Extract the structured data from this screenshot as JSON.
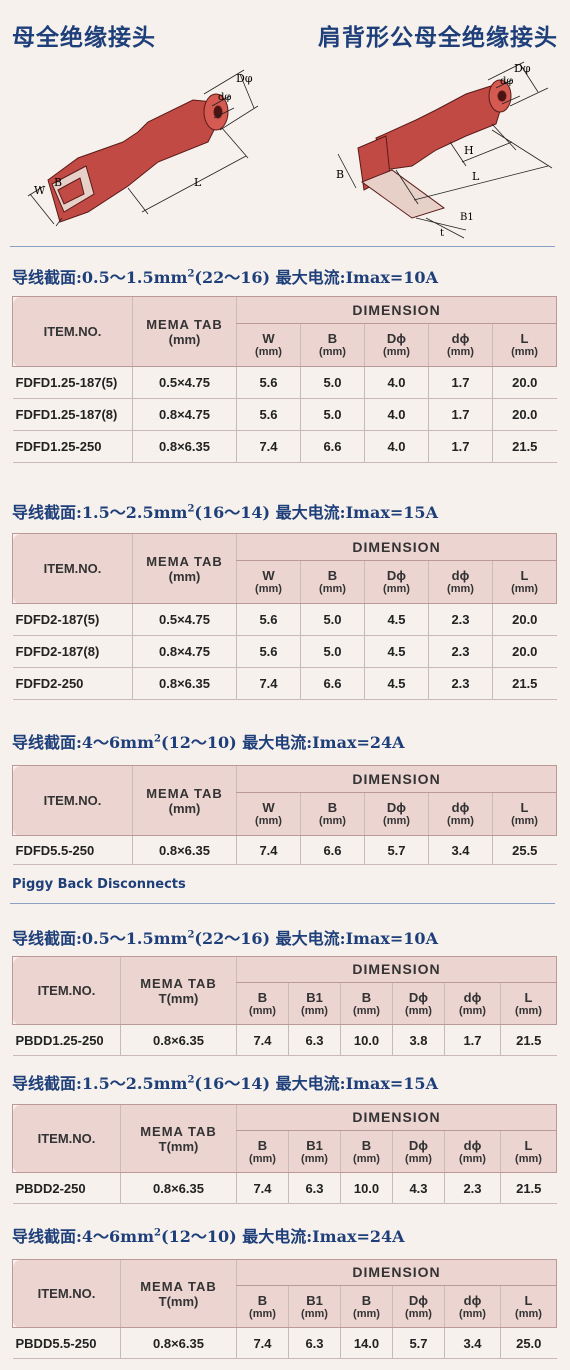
{
  "titles": {
    "left": "母全绝缘接头",
    "right": "肩背形公母全绝缘接头"
  },
  "diagram_labels": {
    "left": {
      "Dphi": "Dφ",
      "dphi": "dφ",
      "W": "W",
      "B": "B",
      "L": "L"
    },
    "right": {
      "Dphi": "Dφ",
      "dphi": "dφ",
      "H": "H",
      "L": "L",
      "B": "B",
      "B1": "B1",
      "t": "t"
    }
  },
  "subheading": "Piggy Back Disconnects",
  "dimension_label": "DIMENSION",
  "sections": [
    {
      "heading_pre": "导线截面:0.5～1.5mm",
      "heading_sup": "2",
      "heading_post": "(22～16)  最大电流:Imax=10A",
      "headers": {
        "item": "ITEM.NO.",
        "tab1": "MEMA TAB",
        "tab2": "(mm)",
        "cols": [
          [
            "W",
            "(mm)"
          ],
          [
            "B",
            "(mm)"
          ],
          [
            "Dϕ",
            "(mm)"
          ],
          [
            "dϕ",
            "(mm)"
          ],
          [
            "L",
            "(mm)"
          ]
        ]
      },
      "rows": [
        [
          "FDFD1.25-187(5)",
          "0.5×4.75",
          "5.6",
          "5.0",
          "4.0",
          "1.7",
          "20.0"
        ],
        [
          "FDFD1.25-187(8)",
          "0.8×4.75",
          "5.6",
          "5.0",
          "4.0",
          "1.7",
          "20.0"
        ],
        [
          "FDFD1.25-250",
          "0.8×6.35",
          "7.4",
          "6.6",
          "4.0",
          "1.7",
          "21.5"
        ]
      ]
    },
    {
      "heading_pre": "导线截面:1.5～2.5mm",
      "heading_sup": "2",
      "heading_post": "(16～14)  最大电流:Imax=15A",
      "headers": {
        "item": "ITEM.NO.",
        "tab1": "MEMA TAB",
        "tab2": "(mm)",
        "cols": [
          [
            "W",
            "(mm)"
          ],
          [
            "B",
            "(mm)"
          ],
          [
            "Dϕ",
            "(mm)"
          ],
          [
            "dϕ",
            "(mm)"
          ],
          [
            "L",
            "(mm)"
          ]
        ]
      },
      "rows": [
        [
          "FDFD2-187(5)",
          "0.5×4.75",
          "5.6",
          "5.0",
          "4.5",
          "2.3",
          "20.0"
        ],
        [
          "FDFD2-187(8)",
          "0.8×4.75",
          "5.6",
          "5.0",
          "4.5",
          "2.3",
          "20.0"
        ],
        [
          "FDFD2-250",
          "0.8×6.35",
          "7.4",
          "6.6",
          "4.5",
          "2.3",
          "21.5"
        ]
      ]
    },
    {
      "heading_pre": "导线截面:4～6mm",
      "heading_sup": "2",
      "heading_post": "(12～10)  最大电流:Imax=24A",
      "headers": {
        "item": "ITEM.NO.",
        "tab1": "MEMA TAB",
        "tab2": "(mm)",
        "cols": [
          [
            "W",
            "(mm)"
          ],
          [
            "B",
            "(mm)"
          ],
          [
            "Dϕ",
            "(mm)"
          ],
          [
            "dϕ",
            "(mm)"
          ],
          [
            "L",
            "(mm)"
          ]
        ]
      },
      "rows": [
        [
          "FDFD5.5-250",
          "0.8×6.35",
          "7.4",
          "6.6",
          "5.7",
          "3.4",
          "25.5"
        ]
      ]
    },
    {
      "heading_pre": "导线截面:0.5～1.5mm",
      "heading_sup": "2",
      "heading_post": "(22～16)  最大电流:Imax=10A",
      "headers": {
        "item": "ITEM.NO.",
        "tab1": "MEMA TAB",
        "tab2": "T(mm)",
        "cols": [
          [
            "B",
            "(mm)"
          ],
          [
            "B1",
            "(mm)"
          ],
          [
            "B",
            "(mm)"
          ],
          [
            "Dϕ",
            "(mm)"
          ],
          [
            "dϕ",
            "(mm)"
          ],
          [
            "L",
            "(mm)"
          ]
        ]
      },
      "rows": [
        [
          "PBDD1.25-250",
          "0.8×6.35",
          "7.4",
          "6.3",
          "10.0",
          "3.8",
          "1.7",
          "21.5"
        ]
      ]
    },
    {
      "heading_pre": "导线截面:1.5～2.5mm",
      "heading_sup": "2",
      "heading_post": "(16～14)  最大电流:Imax=15A",
      "headers": {
        "item": "ITEM.NO.",
        "tab1": "MEMA TAB",
        "tab2": "T(mm)",
        "cols": [
          [
            "B",
            "(mm)"
          ],
          [
            "B1",
            "(mm)"
          ],
          [
            "B",
            "(mm)"
          ],
          [
            "Dϕ",
            "(mm)"
          ],
          [
            "dϕ",
            "(mm)"
          ],
          [
            "L",
            "(mm)"
          ]
        ]
      },
      "rows": [
        [
          "PBDD2-250",
          "0.8×6.35",
          "7.4",
          "6.3",
          "10.0",
          "4.3",
          "2.3",
          "21.5"
        ]
      ]
    },
    {
      "heading_pre": "导线截面:4～6mm",
      "heading_sup": "2",
      "heading_post": "(12～10)  最大电流:Imax=24A",
      "headers": {
        "item": "ITEM.NO.",
        "tab1": "MEMA TAB",
        "tab2": "T(mm)",
        "cols": [
          [
            "B",
            "(mm)"
          ],
          [
            "B1",
            "(mm)"
          ],
          [
            "B",
            "(mm)"
          ],
          [
            "Dϕ",
            "(mm)"
          ],
          [
            "dϕ",
            "(mm)"
          ],
          [
            "L",
            "(mm)"
          ]
        ]
      },
      "rows": [
        [
          "PBDD5.5-250",
          "0.8×6.35",
          "7.4",
          "6.3",
          "14.0",
          "5.7",
          "3.4",
          "25.0"
        ]
      ]
    }
  ]
}
